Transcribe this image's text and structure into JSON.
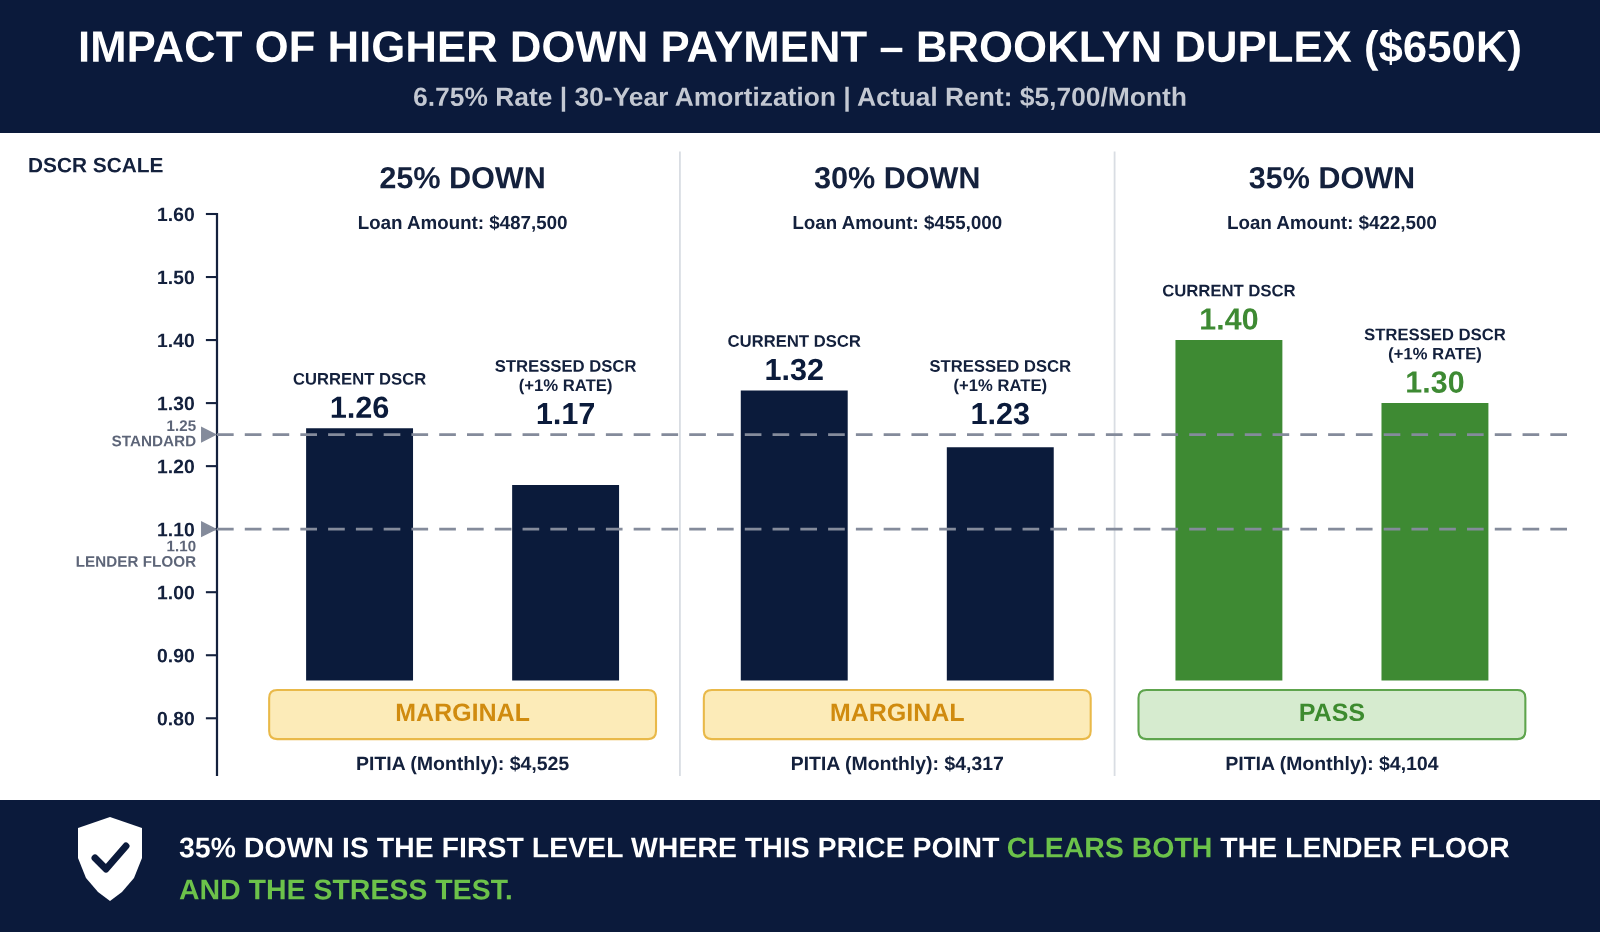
{
  "chart_data": {
    "type": "bar",
    "title": "IMPACT OF HIGHER DOWN PAYMENT – BROOKLYN DUPLEX ($650K)",
    "subtitle": "6.75% Rate | 30-Year Amortization | Actual Rent: $5,700/Month",
    "ylabel": "DSCR SCALE",
    "categories": [
      "25% DOWN",
      "30% DOWN",
      "35% DOWN"
    ],
    "series": [
      {
        "name": "CURRENT DSCR",
        "colors": [
          "#0b1b3b",
          "#0b1b3b",
          "#3e8a33"
        ],
        "base": [
          0.86,
          0.86,
          0.86
        ],
        "values": [
          0.4,
          0.46,
          0.54
        ],
        "value_labels": [
          "1.26",
          "1.32",
          "1.40"
        ]
      },
      {
        "name": "STRESSED DSCR\n(+1% RATE)",
        "colors": [
          "#0b1b3b",
          "#0b1b3b",
          "#3e8a33"
        ],
        "base": [
          0.86,
          0.86,
          0.86
        ],
        "values": [
          0.31,
          0.37,
          0.44
        ],
        "value_labels": [
          "1.17",
          "1.23",
          "1.30"
        ]
      }
    ],
    "ylim": [
      0.71,
      1.6
    ],
    "yticks": [
      {
        "value": 0.8,
        "label": "0.80"
      },
      {
        "value": 0.9,
        "label": "0.90"
      },
      {
        "value": 1.0,
        "label": "1.00"
      },
      {
        "value": 1.1,
        "label": "1.10"
      },
      {
        "value": 1.2,
        "label": "1.20"
      },
      {
        "value": 1.3,
        "label": "1.30"
      },
      {
        "value": 1.4,
        "label": "1.40"
      },
      {
        "value": 1.5,
        "label": "1.50"
      },
      {
        "value": 1.6,
        "label": "1.60"
      }
    ],
    "ref_lines": [
      {
        "axis": "y",
        "value": 1.25,
        "label": "1.25\nSTANDARD",
        "color": "#848b9b",
        "line_style": "dashed"
      },
      {
        "axis": "y",
        "value": 1.1,
        "label": "1.10\nLENDER FLOOR",
        "color": "#848b9b",
        "line_style": "dashed"
      }
    ],
    "annotations": [
      "Loan Amount: $487,500",
      "Loan Amount: $455,000",
      "Loan Amount: $422,500",
      "MARGINAL",
      "MARGINAL",
      "PASS",
      "PITIA (Monthly): $4,525",
      "PITIA (Monthly): $4,317",
      "PITIA (Monthly): $4,104",
      "35% DOWN IS THE FIRST LEVEL WHERE THIS PRICE POINT",
      "CLEARS BOTH",
      "THE LENDER FLOOR",
      "AND THE STRESS TEST."
    ]
  }
}
